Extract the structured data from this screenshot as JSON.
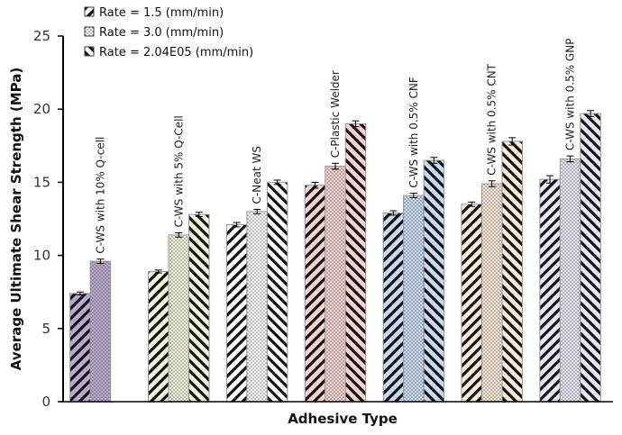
{
  "chart_data": {
    "type": "bar",
    "title": "",
    "xlabel": "Adhesive Type",
    "ylabel": "Average Ultimate Shear Strength (MPa)",
    "ylim": [
      0,
      25
    ],
    "yticks": [
      0,
      5,
      10,
      15,
      20,
      25
    ],
    "grid": false,
    "legend_position": "top-left",
    "categories": [
      "C-WS with 10% Q-cell",
      "C-WS with 5% Q-Cell",
      "C-Neat WS",
      "C-Plastic Welder",
      "C-WS with 0.5% CNF",
      "C-WS with 0.5% CNT",
      "C-WS with 0.5% GNP"
    ],
    "category_colors": [
      "#b9a9cf",
      "#eef5dc",
      "#ffffff",
      "#f4d3d2",
      "#c9daf2",
      "#f9e9d9",
      "#e9e6f3"
    ],
    "series": [
      {
        "name": "Rate = 1.5 (mm/min)",
        "pattern": "diagonal-down",
        "values": [
          7.4,
          8.9,
          12.1,
          14.8,
          12.9,
          13.5,
          15.2
        ],
        "errors": [
          0.1,
          0.1,
          0.15,
          0.2,
          0.15,
          0.15,
          0.25
        ]
      },
      {
        "name": "Rate = 3.0 (mm/min)",
        "pattern": "dots",
        "values": [
          9.6,
          11.4,
          13.0,
          16.1,
          14.1,
          14.9,
          16.6
        ],
        "errors": [
          0.15,
          0.15,
          0.15,
          0.2,
          0.15,
          0.2,
          0.2
        ]
      },
      {
        "name": "Rate = 2.04E05 (mm/min)",
        "pattern": "diagonal-up",
        "values": [
          null,
          12.8,
          15.0,
          19.0,
          16.5,
          17.8,
          19.7
        ],
        "errors": [
          null,
          0.15,
          0.15,
          0.2,
          0.2,
          0.25,
          0.2
        ]
      }
    ]
  }
}
